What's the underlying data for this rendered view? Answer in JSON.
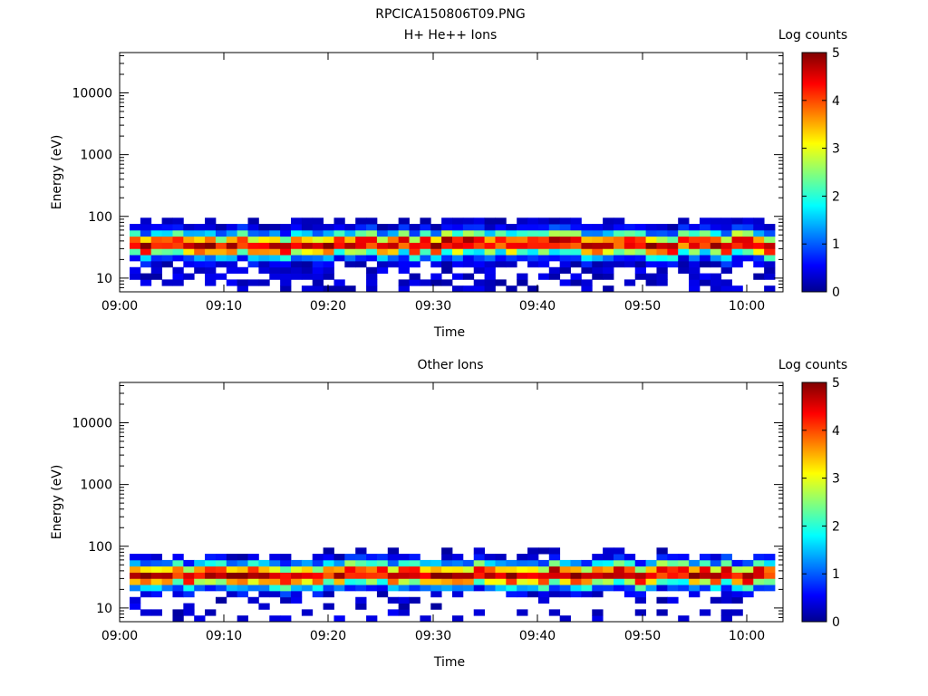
{
  "title": "RPCICA150806T09.PNG",
  "chart_data": [
    {
      "type": "heatmap",
      "title": "H+ He++ Ions",
      "xlabel": "Time",
      "ylabel": "Energy (eV)",
      "yscale": "log",
      "ylim": [
        6,
        45000
      ],
      "x_ticks": [
        "09:00",
        "09:10",
        "09:20",
        "09:30",
        "09:40",
        "09:50",
        "10:00"
      ],
      "y_ticks": [
        "10",
        "100",
        "1000",
        "10000"
      ],
      "colorbar": {
        "label": "Log counts",
        "range": [
          0,
          5
        ],
        "ticks": [
          "0",
          "1",
          "2",
          "3",
          "4",
          "5"
        ]
      },
      "peak_energy_ev": 35,
      "energy_range_ev": [
        6,
        95
      ]
    },
    {
      "type": "heatmap",
      "title": "Other Ions",
      "xlabel": "Time",
      "ylabel": "Energy (eV)",
      "yscale": "log",
      "ylim": [
        6,
        45000
      ],
      "x_ticks": [
        "09:00",
        "09:10",
        "09:20",
        "09:30",
        "09:40",
        "09:50",
        "10:00"
      ],
      "y_ticks": [
        "10",
        "100",
        "1000",
        "10000"
      ],
      "colorbar": {
        "label": "Log counts",
        "range": [
          0,
          5
        ],
        "ticks": [
          "0",
          "1",
          "2",
          "3",
          "4",
          "5"
        ]
      },
      "peak_energy_ev": 35,
      "energy_range_ev": [
        6,
        95
      ]
    }
  ]
}
